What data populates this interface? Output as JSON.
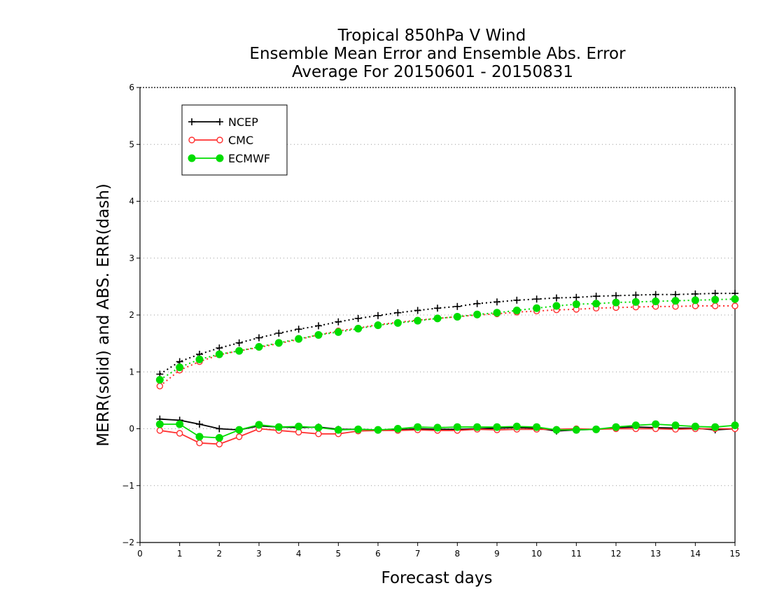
{
  "chart_data": {
    "type": "line",
    "title": [
      "Tropical 850hPa V Wind",
      "Ensemble Mean Error and Ensemble Abs. Error",
      "Average For 20150601 - 20150831"
    ],
    "xlabel": "Forecast days",
    "ylabel": "MERR(solid) and ABS. ERR(dash)",
    "xlim": [
      0,
      15
    ],
    "ylim": [
      -2,
      6
    ],
    "xticks": [
      "0",
      "1",
      "2",
      "3",
      "4",
      "5",
      "6",
      "7",
      "8",
      "9",
      "10",
      "11",
      "12",
      "13",
      "14",
      "15"
    ],
    "yticks": [
      "−2",
      "−1",
      "0",
      "1",
      "2",
      "3",
      "4",
      "5",
      "6"
    ],
    "grid": "horizontal dotted",
    "legend_position": "top-left",
    "x": [
      0.5,
      1,
      1.5,
      2,
      2.5,
      3,
      3.5,
      4,
      4.5,
      5,
      5.5,
      6,
      6.5,
      7,
      7.5,
      8,
      8.5,
      9,
      9.5,
      10,
      10.5,
      11,
      11.5,
      12,
      12.5,
      13,
      13.5,
      14,
      14.5,
      15
    ],
    "series": [
      {
        "name": "NCEP",
        "color": "#000000",
        "marker": "plus",
        "merr": [
          0.17,
          0.15,
          0.08,
          0.0,
          -0.02,
          0.05,
          0.03,
          0.02,
          0.03,
          -0.01,
          -0.01,
          -0.02,
          -0.02,
          0.0,
          -0.01,
          -0.01,
          0.0,
          0.01,
          0.02,
          0.01,
          -0.04,
          -0.02,
          -0.01,
          0.02,
          0.03,
          0.02,
          0.01,
          0.01,
          -0.02,
          0.0
        ],
        "abs_err": [
          0.96,
          1.18,
          1.31,
          1.42,
          1.51,
          1.6,
          1.68,
          1.75,
          1.81,
          1.88,
          1.94,
          1.99,
          2.04,
          2.08,
          2.12,
          2.15,
          2.2,
          2.23,
          2.26,
          2.28,
          2.3,
          2.31,
          2.33,
          2.34,
          2.35,
          2.36,
          2.36,
          2.37,
          2.38,
          2.38
        ]
      },
      {
        "name": "CMC",
        "color": "#ff3030",
        "marker": "open-circle",
        "merr": [
          -0.03,
          -0.08,
          -0.25,
          -0.27,
          -0.14,
          0.0,
          -0.03,
          -0.06,
          -0.09,
          -0.09,
          -0.04,
          -0.03,
          -0.03,
          -0.02,
          -0.03,
          -0.03,
          -0.01,
          -0.02,
          -0.01,
          -0.01,
          -0.01,
          0.0,
          -0.01,
          0.0,
          0.0,
          0.0,
          -0.01,
          0.0,
          0.0,
          0.0
        ],
        "abs_err": [
          0.75,
          1.03,
          1.18,
          1.3,
          1.37,
          1.43,
          1.5,
          1.57,
          1.65,
          1.72,
          1.77,
          1.83,
          1.87,
          1.91,
          1.94,
          1.97,
          2.0,
          2.02,
          2.05,
          2.07,
          2.09,
          2.1,
          2.12,
          2.13,
          2.14,
          2.15,
          2.15,
          2.16,
          2.16,
          2.16
        ]
      },
      {
        "name": "ECMWF",
        "color": "#00dd00",
        "marker": "filled-circle",
        "merr": [
          0.08,
          0.08,
          -0.14,
          -0.16,
          -0.02,
          0.07,
          0.03,
          0.04,
          0.02,
          -0.02,
          -0.01,
          -0.02,
          0.0,
          0.03,
          0.02,
          0.03,
          0.03,
          0.03,
          0.04,
          0.03,
          -0.02,
          -0.02,
          -0.01,
          0.03,
          0.06,
          0.08,
          0.06,
          0.04,
          0.03,
          0.06
        ],
        "abs_err": [
          0.86,
          1.08,
          1.22,
          1.31,
          1.37,
          1.44,
          1.51,
          1.58,
          1.65,
          1.7,
          1.76,
          1.82,
          1.86,
          1.9,
          1.94,
          1.97,
          2.01,
          2.04,
          2.08,
          2.12,
          2.16,
          2.19,
          2.2,
          2.22,
          2.23,
          2.24,
          2.25,
          2.26,
          2.27,
          2.28
        ]
      }
    ]
  }
}
